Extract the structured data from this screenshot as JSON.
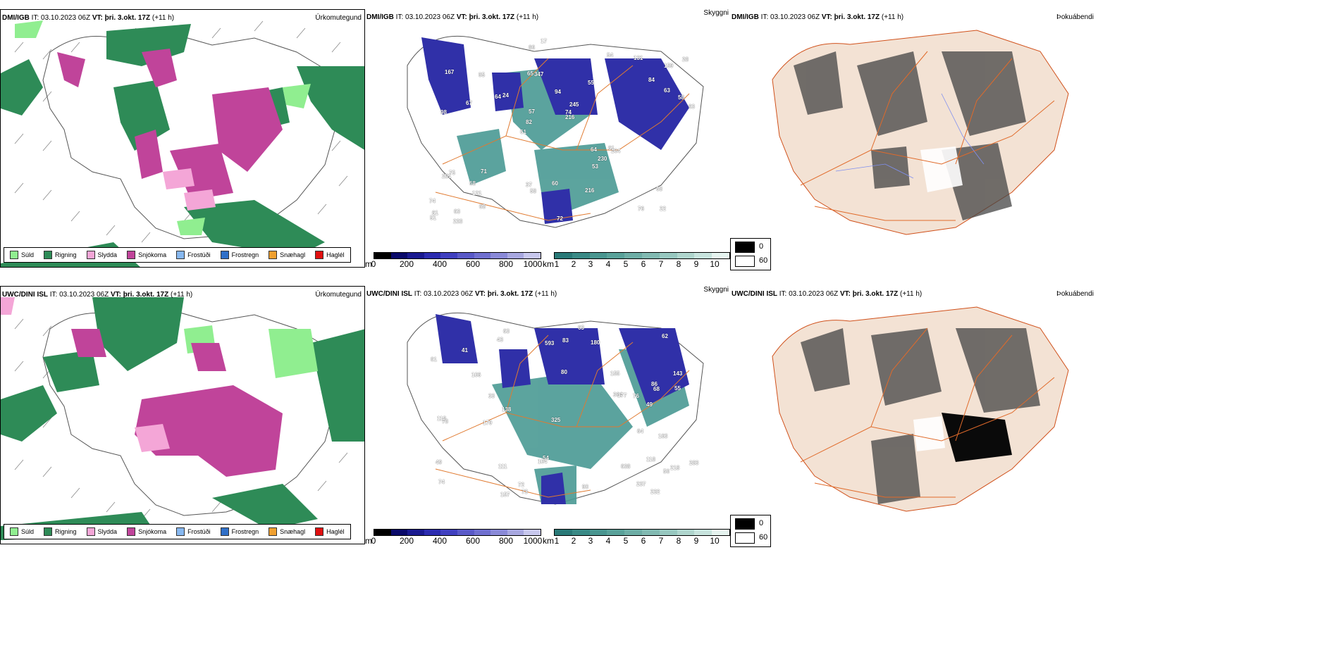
{
  "rows": [
    {
      "precip": {
        "source": "DMI/IGB",
        "it": "IT: 03.10.2023 06Z",
        "vt": "VT: þri. 3.okt. 17Z",
        "lead": "(+11 h)",
        "label": "Úrkomutegund"
      },
      "vis": {
        "source": "DMI/IGB",
        "it": "IT: 03.10.2023 06Z",
        "vt": "VT: þri. 3.okt. 17Z",
        "lead": "(+11 h)",
        "label": "Skyggni"
      },
      "fog": {
        "source": "DMI/IGB",
        "it": "IT: 03.10.2023 06Z",
        "vt": "VT: þri. 3.okt. 17Z",
        "lead": "(+11 h)",
        "label": "Þokuábendi"
      },
      "ceiling_labels": [
        "22",
        "98",
        "159",
        "61",
        "55",
        "63",
        "65",
        "94",
        "75",
        "24",
        "74",
        "121",
        "347",
        "245",
        "204",
        "167",
        "66",
        "63",
        "64",
        "63",
        "82",
        "37",
        "57",
        "95",
        "54",
        "71",
        "76",
        "68",
        "61",
        "72",
        "64",
        "67",
        "53",
        "68",
        "58",
        "74",
        "61",
        "58",
        "216",
        "251",
        "84",
        "28",
        "230",
        "216",
        "68",
        "233",
        "51",
        "60",
        "131",
        "17"
      ]
    },
    {
      "precip": {
        "source": "UWC/DINI ISL",
        "it": "IT: 03.10.2023 06Z",
        "vt": "VT: þri. 3.okt. 17Z",
        "lead": "(+11 h)",
        "label": "Úrkomutegund"
      },
      "vis": {
        "source": "UWC/DINI ISL",
        "it": "IT: 03.10.2023 06Z",
        "vt": "VT: þri. 3.okt. 17Z",
        "lead": "(+11 h)",
        "label": "Skyggni"
      },
      "fog": {
        "source": "UWC/DINI ISL",
        "it": "IT: 03.10.2023 06Z",
        "vt": "VT: þri. 3.okt. 17Z",
        "lead": "(+11 h)",
        "label": "Þokuábendi"
      },
      "ceiling_labels": [
        "118",
        "143",
        "218",
        "80",
        "74",
        "63",
        "86",
        "111",
        "62",
        "106",
        "55",
        "61",
        "49",
        "73",
        "49",
        "41",
        "56",
        "43",
        "54",
        "68",
        "118",
        "78",
        "90",
        "304",
        "72",
        "104",
        "63",
        "180",
        "155",
        "283",
        "179",
        "638",
        "157",
        "325",
        "163",
        "237",
        "177",
        "593",
        "232",
        "138",
        "64",
        "76",
        "83",
        "33"
      ]
    }
  ],
  "precip_legend": [
    {
      "label": "Súld",
      "color": "#90ee90"
    },
    {
      "label": "Rigning",
      "color": "#2e8b57"
    },
    {
      "label": "Slydda",
      "color": "#f4a6d7"
    },
    {
      "label": "Snjókoma",
      "color": "#c0449a"
    },
    {
      "label": "Frostúði",
      "color": "#87b8f0"
    },
    {
      "label": "Frostregn",
      "color": "#3070c8"
    },
    {
      "label": "Snæhagl",
      "color": "#f0a030"
    },
    {
      "label": "Haglél",
      "color": "#e01010"
    }
  ],
  "ceiling_bar": {
    "unit": "m",
    "ticks": [
      "0",
      "200",
      "400",
      "600",
      "800",
      "1000"
    ],
    "colors": [
      "#000000",
      "#0a0a6a",
      "#1a1a90",
      "#2c2cb0",
      "#4040c0",
      "#5a5ac8",
      "#7070d0",
      "#8a8ad8",
      "#a8a8e0",
      "#c8c8ee"
    ]
  },
  "vis_bar": {
    "unit": "km",
    "ticks": [
      "1",
      "2",
      "3",
      "4",
      "5",
      "6",
      "7",
      "8",
      "9",
      "10"
    ],
    "colors": [
      "#2a7a78",
      "#3a8a86",
      "#4a9690",
      "#5aa29a",
      "#6eaea6",
      "#82bab2",
      "#98c8c0",
      "#b0d6ce",
      "#c8e4de",
      "#e6f4f0"
    ]
  },
  "fog_legend": [
    "0",
    "60"
  ],
  "colors": {
    "rain": "#2e8b57",
    "drizzle": "#90ee90",
    "snow": "#c0449a",
    "sleet": "#f4a6d7",
    "vis": "#4a9a94",
    "ceiling": "#3030a8",
    "land": "#f3e2d4",
    "road": "#e06a2a"
  }
}
